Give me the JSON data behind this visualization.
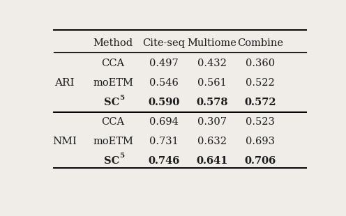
{
  "header": [
    "Method",
    "Cite-seq",
    "Multiome",
    "Combine"
  ],
  "col0": [
    "CCA",
    "moETM",
    "SC5",
    "CCA",
    "moETM",
    "SC5"
  ],
  "col1": [
    "0.497",
    "0.546",
    "0.590",
    "0.694",
    "0.731",
    "0.746"
  ],
  "col2": [
    "0.432",
    "0.561",
    "0.578",
    "0.307",
    "0.632",
    "0.641"
  ],
  "col3": [
    "0.360",
    "0.522",
    "0.572",
    "0.523",
    "0.693",
    "0.706"
  ],
  "bold_rows": [
    2,
    5
  ],
  "bg_color": "#f0ede8",
  "text_color": "#1a1a1a",
  "header_fontsize": 10.5,
  "cell_fontsize": 10.5,
  "group_fontsize": 11
}
